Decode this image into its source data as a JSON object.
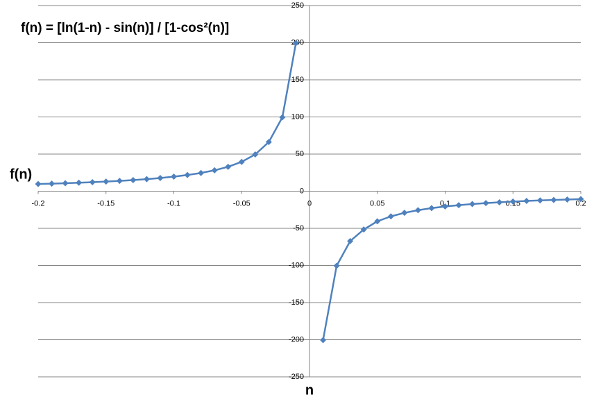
{
  "chart_data": {
    "type": "line",
    "title": "f(n) = [ln(1-n) - sin(n)] / [1-cos²(n)]",
    "x_label": "n",
    "y_label": "f(n)",
    "x": [
      -0.2,
      -0.19,
      -0.18,
      -0.17,
      -0.16,
      -0.15,
      -0.14,
      -0.13,
      -0.12,
      -0.11,
      -0.1,
      -0.09,
      -0.08,
      -0.07,
      -0.06,
      -0.05,
      -0.04,
      -0.03,
      -0.02,
      -0.01,
      0,
      0.01,
      0.02,
      0.03,
      0.04,
      0.05,
      0.06,
      0.07,
      0.08,
      0.09,
      0.1,
      0.11,
      0.12,
      0.13,
      0.14,
      0.15,
      0.16,
      0.17,
      0.18,
      0.19,
      0.2
    ],
    "values": [
      9.67,
      10.18,
      10.76,
      11.41,
      12.13,
      12.96,
      13.9,
      14.99,
      16.27,
      17.77,
      19.58,
      21.8,
      24.57,
      28.13,
      32.88,
      39.54,
      49.53,
      66.19,
      99.52,
      199.51,
      null,
      -200.51,
      -100.52,
      -67.19,
      -51.53,
      -40.54,
      -33.88,
      -29.13,
      -25.57,
      -22.8,
      -20.58,
      -18.77,
      -17.27,
      -15.99,
      -14.9,
      -13.96,
      -13.13,
      -12.41,
      -11.76,
      -11.18,
      -10.67
    ],
    "color": "#4f81bd",
    "xlim": [
      -0.2,
      0.2
    ],
    "xticks": [
      -0.2,
      -0.15,
      -0.1,
      -0.05,
      0,
      0.05,
      0.1,
      0.15,
      0.2
    ],
    "ylim": [
      -250,
      250
    ],
    "yticks": [
      -250,
      -200,
      -150,
      -100,
      -50,
      0,
      50,
      100,
      150,
      200,
      250
    ],
    "grid": true
  }
}
